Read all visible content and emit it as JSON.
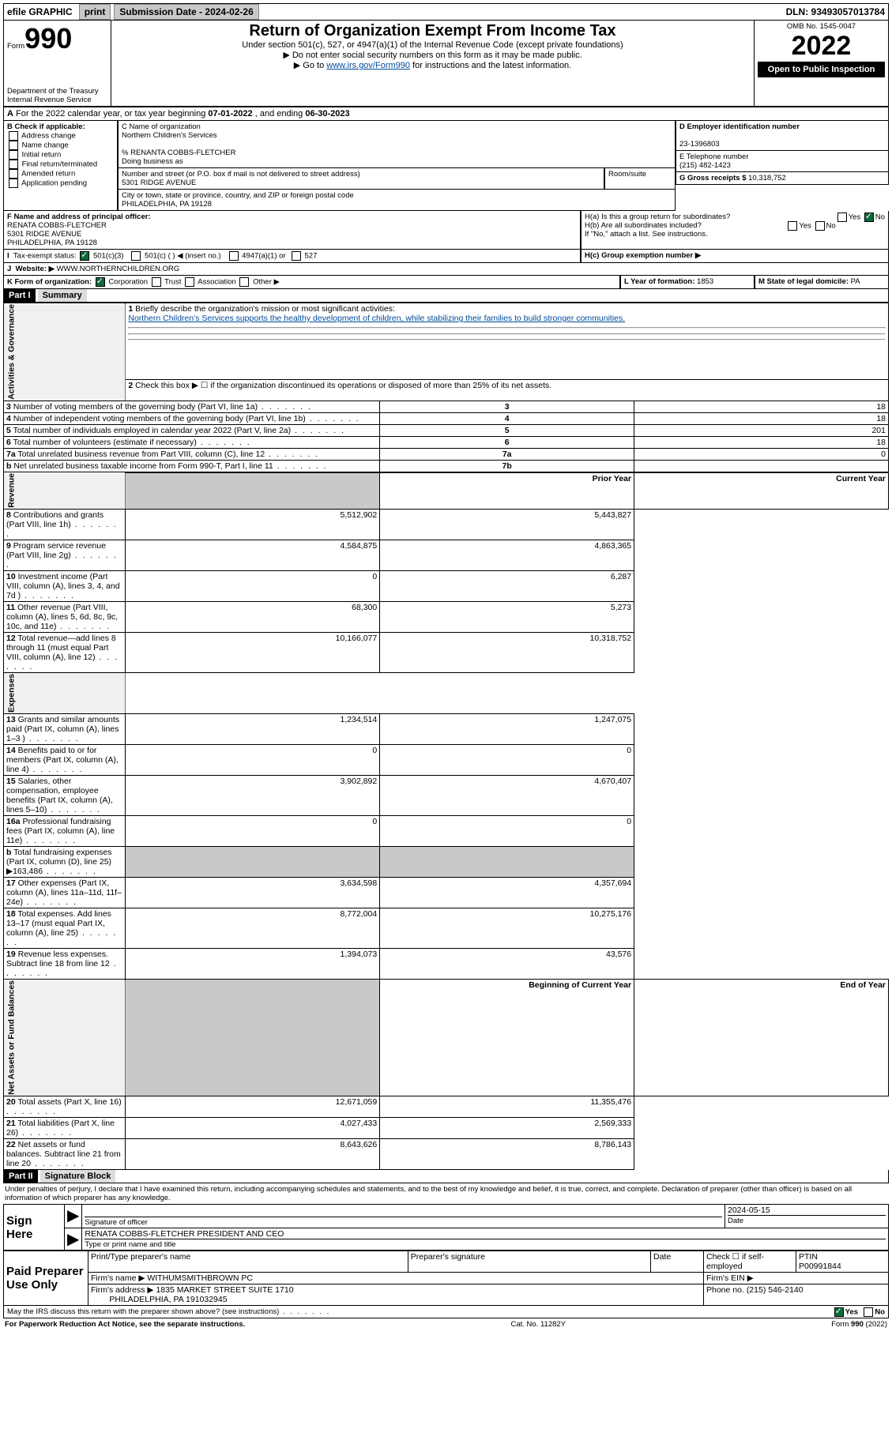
{
  "topbar": {
    "efile": "efile GRAPHIC",
    "print": "print",
    "subLabel": "Submission Date - ",
    "subDate": "2024-02-26",
    "dln": "DLN: 93493057013784"
  },
  "hdr": {
    "form": "990",
    "formWord": "Form",
    "title": "Return of Organization Exempt From Income Tax",
    "sub1": "Under section 501(c), 527, or 4947(a)(1) of the Internal Revenue Code (except private foundations)",
    "sub2": "▶ Do not enter social security numbers on this form as it may be made public.",
    "sub3": "▶ Go to www.irs.gov/Form990 for instructions and the latest information.",
    "irsgov": "www.irs.gov/Form990",
    "omb": "OMB No. 1545-0047",
    "year": "2022",
    "open": "Open to Public Inspection",
    "dept": "Department of the Treasury",
    "irs": "Internal Revenue Service"
  },
  "A": {
    "text": "For the 2022 calendar year, or tax year beginning ",
    "begin": "07-01-2022",
    "mid": " , and ending ",
    "end": "06-30-2023"
  },
  "B": {
    "hdr": "B Check if applicable:",
    "items": [
      "Address change",
      "Name change",
      "Initial return",
      "Final return/terminated",
      "Amended return",
      "Application pending"
    ]
  },
  "C": {
    "lbl": "C Name of organization",
    "name": "Northern Children's Services",
    "pct": "% RENANTA COBBS-FLETCHER",
    "dba": "Doing business as",
    "streetLbl": "Number and street (or P.O. box if mail is not delivered to street address)",
    "street": "5301 RIDGE AVENUE",
    "room": "Room/suite",
    "cityLbl": "City or town, state or province, country, and ZIP or foreign postal code",
    "city": "PHILADELPHIA, PA  19128"
  },
  "D": {
    "lbl": "D Employer identification number",
    "val": "23-1396803"
  },
  "E": {
    "lbl": "E Telephone number",
    "val": "(215) 482-1423"
  },
  "G": {
    "lbl": "G Gross receipts $",
    "val": "10,318,752"
  },
  "F": {
    "lbl": "F Name and address of principal officer:",
    "name": "RENATA COBBS-FLETCHER",
    "addr1": "5301 RIDGE AVENUE",
    "addr2": "PHILADELPHIA, PA  19128"
  },
  "H": {
    "a": "H(a)  Is this a group return for subordinates?",
    "b": "H(b)  Are all subordinates included?",
    "bNote": "If \"No,\" attach a list. See instructions.",
    "c": "H(c)  Group exemption number ▶",
    "yes": "Yes",
    "no": "No"
  },
  "I": {
    "lbl": "Tax-exempt status:",
    "c3": "501(c)(3)",
    "cy": "501(c) (  ) ◀ (insert no.)",
    "a1": "4947(a)(1) or",
    "c527": "527"
  },
  "J": {
    "lbl": "Website: ▶",
    "val": "WWW.NORTHERNCHILDREN.ORG"
  },
  "K": {
    "lbl": "K Form of organization:",
    "opts": [
      "Corporation",
      "Trust",
      "Association",
      "Other ▶"
    ]
  },
  "L": {
    "lbl": "L Year of formation:",
    "val": "1853"
  },
  "M": {
    "lbl": "M State of legal domicile:",
    "val": "PA"
  },
  "partI": {
    "title": "Part I",
    "sub": "Summary"
  },
  "summary": {
    "l1": "Briefly describe the organization's mission or most significant activities:",
    "mission": "Northern Children's Services supports the healthy development of children, while stabilizing their families to build stronger communities.",
    "l2": "Check this box ▶ ☐ if the organization discontinued its operations or disposed of more than 25% of its net assets.",
    "rows": [
      {
        "n": "3",
        "t": "Number of voting members of the governing body (Part VI, line 1a)",
        "box": "3",
        "v": "18"
      },
      {
        "n": "4",
        "t": "Number of independent voting members of the governing body (Part VI, line 1b)",
        "box": "4",
        "v": "18"
      },
      {
        "n": "5",
        "t": "Total number of individuals employed in calendar year 2022 (Part V, line 2a)",
        "box": "5",
        "v": "201"
      },
      {
        "n": "6",
        "t": "Total number of volunteers (estimate if necessary)",
        "box": "6",
        "v": "18"
      },
      {
        "n": "7a",
        "t": "Total unrelated business revenue from Part VIII, column (C), line 12",
        "box": "7a",
        "v": "0"
      },
      {
        "n": "b",
        "t": "Net unrelated business taxable income from Form 990-T, Part I, line 11",
        "box": "7b",
        "v": ""
      }
    ],
    "pyHdr": "Prior Year",
    "cyHdr": "Current Year",
    "rev": [
      {
        "n": "8",
        "t": "Contributions and grants (Part VIII, line 1h)",
        "p": "5,512,902",
        "c": "5,443,827"
      },
      {
        "n": "9",
        "t": "Program service revenue (Part VIII, line 2g)",
        "p": "4,584,875",
        "c": "4,863,365"
      },
      {
        "n": "10",
        "t": "Investment income (Part VIII, column (A), lines 3, 4, and 7d )",
        "p": "0",
        "c": "6,287"
      },
      {
        "n": "11",
        "t": "Other revenue (Part VIII, column (A), lines 5, 6d, 8c, 9c, 10c, and 11e)",
        "p": "68,300",
        "c": "5,273"
      },
      {
        "n": "12",
        "t": "Total revenue—add lines 8 through 11 (must equal Part VIII, column (A), line 12)",
        "p": "10,166,077",
        "c": "10,318,752"
      }
    ],
    "exp": [
      {
        "n": "13",
        "t": "Grants and similar amounts paid (Part IX, column (A), lines 1–3 )",
        "p": "1,234,514",
        "c": "1,247,075"
      },
      {
        "n": "14",
        "t": "Benefits paid to or for members (Part IX, column (A), line 4)",
        "p": "0",
        "c": "0"
      },
      {
        "n": "15",
        "t": "Salaries, other compensation, employee benefits (Part IX, column (A), lines 5–10)",
        "p": "3,902,892",
        "c": "4,670,407"
      },
      {
        "n": "16a",
        "t": "Professional fundraising fees (Part IX, column (A), line 11e)",
        "p": "0",
        "c": "0"
      },
      {
        "n": "b",
        "t": "Total fundraising expenses (Part IX, column (D), line 25) ▶163,486",
        "p": "",
        "c": "",
        "shade": true
      },
      {
        "n": "17",
        "t": "Other expenses (Part IX, column (A), lines 11a–11d, 11f–24e)",
        "p": "3,634,598",
        "c": "4,357,694"
      },
      {
        "n": "18",
        "t": "Total expenses. Add lines 13–17 (must equal Part IX, column (A), line 25)",
        "p": "8,772,004",
        "c": "10,275,176"
      },
      {
        "n": "19",
        "t": "Revenue less expenses. Subtract line 18 from line 12",
        "p": "1,394,073",
        "c": "43,576"
      }
    ],
    "naHdr1": "Beginning of Current Year",
    "naHdr2": "End of Year",
    "na": [
      {
        "n": "20",
        "t": "Total assets (Part X, line 16)",
        "p": "12,671,059",
        "c": "11,355,476"
      },
      {
        "n": "21",
        "t": "Total liabilities (Part X, line 26)",
        "p": "4,027,433",
        "c": "2,569,333"
      },
      {
        "n": "22",
        "t": "Net assets or fund balances. Subtract line 21 from line 20",
        "p": "8,643,626",
        "c": "8,786,143"
      }
    ],
    "sideGov": "Activities & Governance",
    "sideRev": "Revenue",
    "sideExp": "Expenses",
    "sideNA": "Net Assets or Fund Balances"
  },
  "partII": {
    "title": "Part II",
    "sub": "Signature Block",
    "decl": "Under penalties of perjury, I declare that I have examined this return, including accompanying schedules and statements, and to the best of my knowledge and belief, it is true, correct, and complete. Declaration of preparer (other than officer) is based on all information of which preparer has any knowledge."
  },
  "sign": {
    "here": "Sign Here",
    "sigOff": "Signature of officer",
    "date": "Date",
    "dateVal": "2024-05-15",
    "name": "RENATA COBBS-FLETCHER  PRESIDENT AND CEO",
    "typeLbl": "Type or print name and title"
  },
  "paid": {
    "hdr": "Paid Preparer Use Only",
    "c1": "Print/Type preparer's name",
    "c2": "Preparer's signature",
    "c3": "Date",
    "chkLbl": "Check ☐ if self-employed",
    "ptinLbl": "PTIN",
    "ptin": "P00991844",
    "firmLbl": "Firm's name  ▶",
    "firm": "WITHUMSMITHBROWN PC",
    "einLbl": "Firm's EIN ▶",
    "addrLbl": "Firm's address ▶",
    "addr1": "1835 MARKET STREET SUITE 1710",
    "addr2": "PHILADELPHIA, PA  191032945",
    "phLbl": "Phone no.",
    "ph": "(215) 546-2140"
  },
  "foot": {
    "q": "May the IRS discuss this return with the preparer shown above? (see instructions)",
    "yes": "Yes",
    "no": "No",
    "pra": "For Paperwork Reduction Act Notice, see the separate instructions.",
    "cat": "Cat. No. 11282Y",
    "form": "Form 990 (2022)"
  }
}
